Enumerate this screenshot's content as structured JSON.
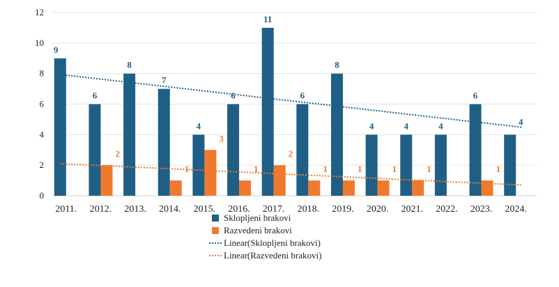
{
  "chart_data": {
    "type": "bar",
    "categories": [
      "2011.",
      "2012.",
      "2013.",
      "2014.",
      "2015.",
      "2016.",
      "2017.",
      "2018.",
      "2019.",
      "2020.",
      "2021.",
      "2022.",
      "2023.",
      "2024."
    ],
    "series": [
      {
        "name": "Sklopljeni brakovi",
        "values": [
          9,
          6,
          8,
          7,
          4,
          6,
          11,
          6,
          8,
          4,
          4,
          4,
          6,
          4
        ],
        "color": "#1f5f86"
      },
      {
        "name": "Razvedeni brakovi",
        "values": [
          null,
          2,
          null,
          1,
          3,
          1,
          2,
          1,
          1,
          1,
          1,
          null,
          1,
          null
        ],
        "color": "#ef7a2e"
      }
    ],
    "trendlines": [
      {
        "name": "Linear(Sklopljeni brakovi)",
        "of": "Sklopljeni brakovi",
        "color": "#1f5f86"
      },
      {
        "name": "Linear(Razvedeni brakovi)",
        "of": "Razvedeni brakovi",
        "color": "#ef7a2e"
      }
    ],
    "y_ticks": [
      0,
      2,
      4,
      6,
      8,
      10,
      12
    ],
    "ylim": [
      0,
      12
    ],
    "grid": true,
    "legend_position": "bottom"
  }
}
